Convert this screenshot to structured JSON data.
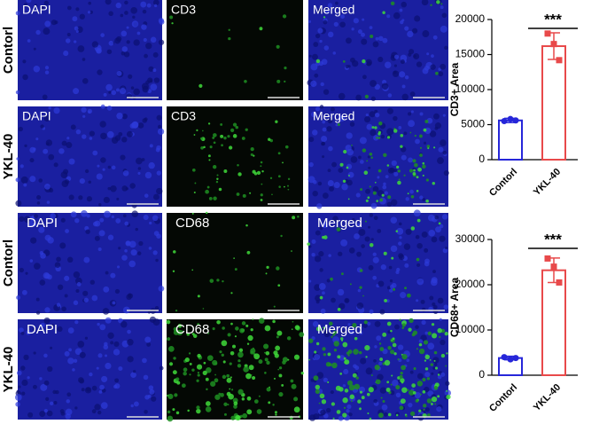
{
  "row_labels": [
    "Contorl",
    "YKL-40",
    "Contorl",
    "YKL-40"
  ],
  "panels": [
    [
      "DAPI",
      "CD3",
      "Merged"
    ],
    [
      "DAPI",
      "CD3",
      "Merged"
    ],
    [
      "DAPI",
      "CD68",
      "Merged"
    ],
    [
      "DAPI",
      "CD68",
      "Merged"
    ]
  ],
  "chart_data": [
    {
      "type": "bar",
      "ylabel": "CD3+ Area",
      "categories": [
        "Contorl",
        "YKL-40"
      ],
      "values": [
        5600,
        16200
      ],
      "errors": [
        300,
        1900
      ],
      "points": [
        [
          5500,
          5800,
          5600
        ],
        [
          18000,
          16500,
          14200
        ]
      ],
      "colors": [
        "#2626d9",
        "#e8494a"
      ],
      "ylim": [
        0,
        20000
      ],
      "yticks": [
        0,
        5000,
        10000,
        15000,
        20000
      ],
      "annotation": "***"
    },
    {
      "type": "bar",
      "ylabel": "CD68+ Area",
      "categories": [
        "Contorl",
        "YKL-40"
      ],
      "values": [
        3800,
        23200
      ],
      "errors": [
        400,
        2700
      ],
      "points": [
        [
          4000,
          3500,
          3800
        ],
        [
          25800,
          24000,
          20500
        ]
      ],
      "colors": [
        "#2626d9",
        "#e8494a"
      ],
      "ylim": [
        0,
        30000
      ],
      "yticks": [
        0,
        10000,
        20000,
        30000
      ],
      "annotation": "***"
    }
  ]
}
